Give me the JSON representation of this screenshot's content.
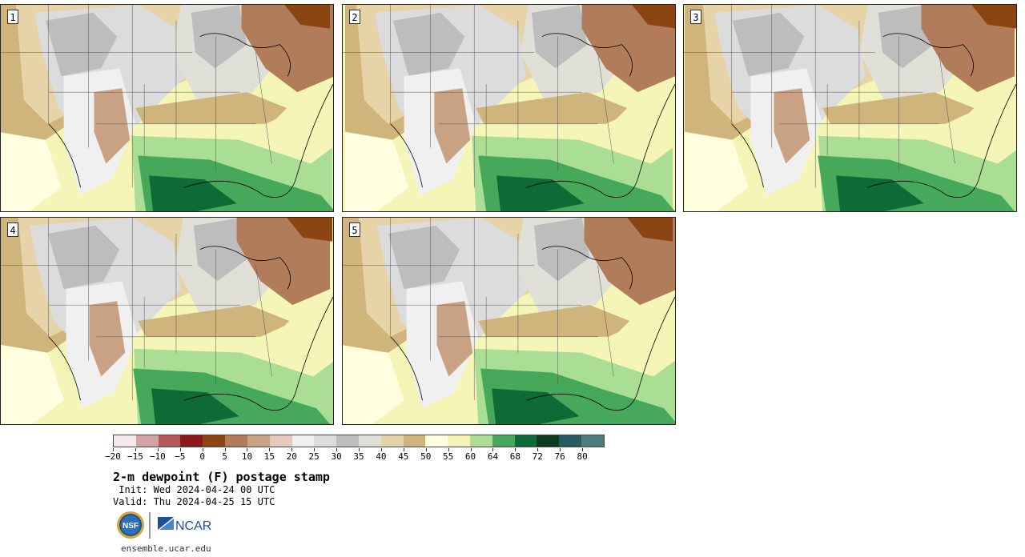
{
  "panels": [
    {
      "label": "1"
    },
    {
      "label": "2"
    },
    {
      "label": "3"
    },
    {
      "label": "4"
    },
    {
      "label": "5"
    }
  ],
  "colorbar": {
    "colors": [
      "#f3e9e9",
      "#d4a4a4",
      "#b5585a",
      "#8b1a1a",
      "#8b4513",
      "#b07c5a",
      "#c9a285",
      "#e3cbbb",
      "#f0f0f0",
      "#dcdcdc",
      "#bdbdbd",
      "#e0e0d8",
      "#e6d4a8",
      "#cfb57b",
      "#ffffe0",
      "#f5f5b8",
      "#a9de94",
      "#45a85a",
      "#0e6b36",
      "#0c3b1d",
      "#255a5f",
      "#4e7c80"
    ],
    "tick_labels": [
      "−20",
      "−15",
      "−10",
      "−5",
      "0",
      "5",
      "10",
      "15",
      "20",
      "25",
      "30",
      "35",
      "40",
      "45",
      "50",
      "55",
      "60",
      "64",
      "68",
      "72",
      "76",
      "80"
    ]
  },
  "title": "2-m dewpoint (F) postage stamp",
  "init": " Init: Wed 2024-04-24 00 UTC",
  "valid": "Valid: Thu 2024-04-25 15 UTC",
  "logos": {
    "nsf": "NSF",
    "ncar": "NCAR"
  },
  "footer": "ensemble.ucar.edu"
}
